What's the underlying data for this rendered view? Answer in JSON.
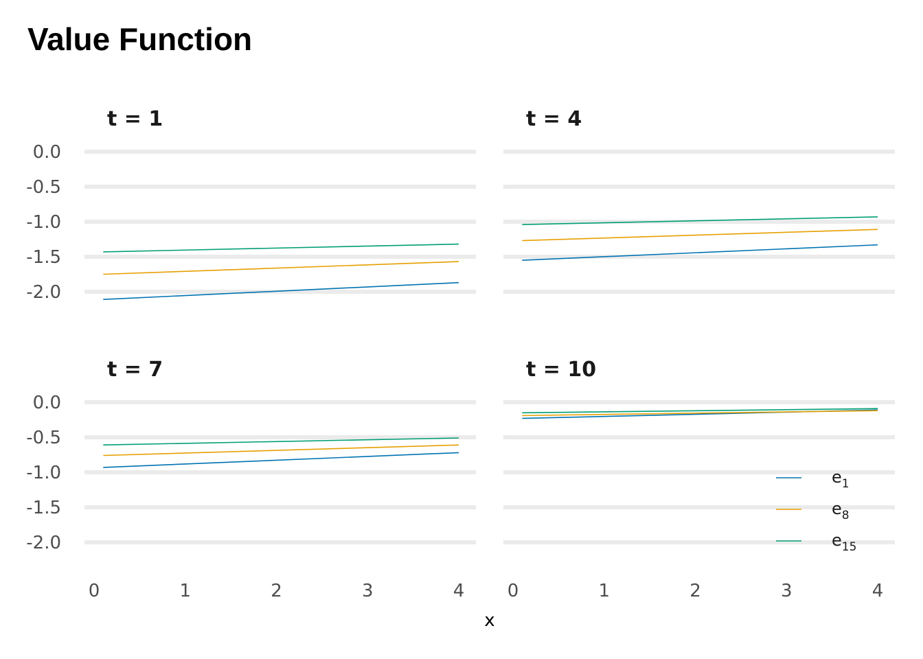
{
  "chart_data": {
    "type": "line",
    "title": "Value Function",
    "xlabel": "x",
    "ylabel": "",
    "xlim": [
      0,
      4
    ],
    "ylim": [
      -2.0,
      0.0
    ],
    "x_ticks": [
      "0",
      "1",
      "2",
      "3",
      "4"
    ],
    "y_ticks": [
      "0.0",
      "-0.5",
      "-1.0",
      "-1.5",
      "-2.0"
    ],
    "grid": "horizontal major gridlines only",
    "legend_position": "bottom-right, inside bottom-right panel",
    "legend": [
      {
        "base": "e",
        "sub": "1",
        "color": "#0072B2"
      },
      {
        "base": "e",
        "sub": "8",
        "color": "#E69F00"
      },
      {
        "base": "e",
        "sub": "15",
        "color": "#009E73"
      }
    ],
    "x": [
      0.1,
      4.0
    ],
    "panels": [
      {
        "label": "t = 1",
        "series": [
          {
            "name": "e1",
            "color": "#0072B2",
            "values": [
              -2.11,
              -1.87
            ]
          },
          {
            "name": "e8",
            "color": "#E69F00",
            "values": [
              -1.75,
              -1.57
            ]
          },
          {
            "name": "e15",
            "color": "#009E73",
            "values": [
              -1.43,
              -1.32
            ]
          }
        ]
      },
      {
        "label": "t = 4",
        "series": [
          {
            "name": "e1",
            "color": "#0072B2",
            "values": [
              -1.55,
              -1.33
            ]
          },
          {
            "name": "e8",
            "color": "#E69F00",
            "values": [
              -1.27,
              -1.11
            ]
          },
          {
            "name": "e15",
            "color": "#009E73",
            "values": [
              -1.04,
              -0.93
            ]
          }
        ]
      },
      {
        "label": "t = 7",
        "series": [
          {
            "name": "e1",
            "color": "#0072B2",
            "values": [
              -0.93,
              -0.72
            ]
          },
          {
            "name": "e8",
            "color": "#E69F00",
            "values": [
              -0.76,
              -0.61
            ]
          },
          {
            "name": "e15",
            "color": "#009E73",
            "values": [
              -0.61,
              -0.51
            ]
          }
        ]
      },
      {
        "label": "t = 10",
        "series": [
          {
            "name": "e1",
            "color": "#0072B2",
            "values": [
              -0.23,
              -0.11
            ]
          },
          {
            "name": "e8",
            "color": "#E69F00",
            "values": [
              -0.19,
              -0.12
            ]
          },
          {
            "name": "e15",
            "color": "#009E73",
            "values": [
              -0.15,
              -0.09
            ]
          }
        ]
      }
    ]
  }
}
